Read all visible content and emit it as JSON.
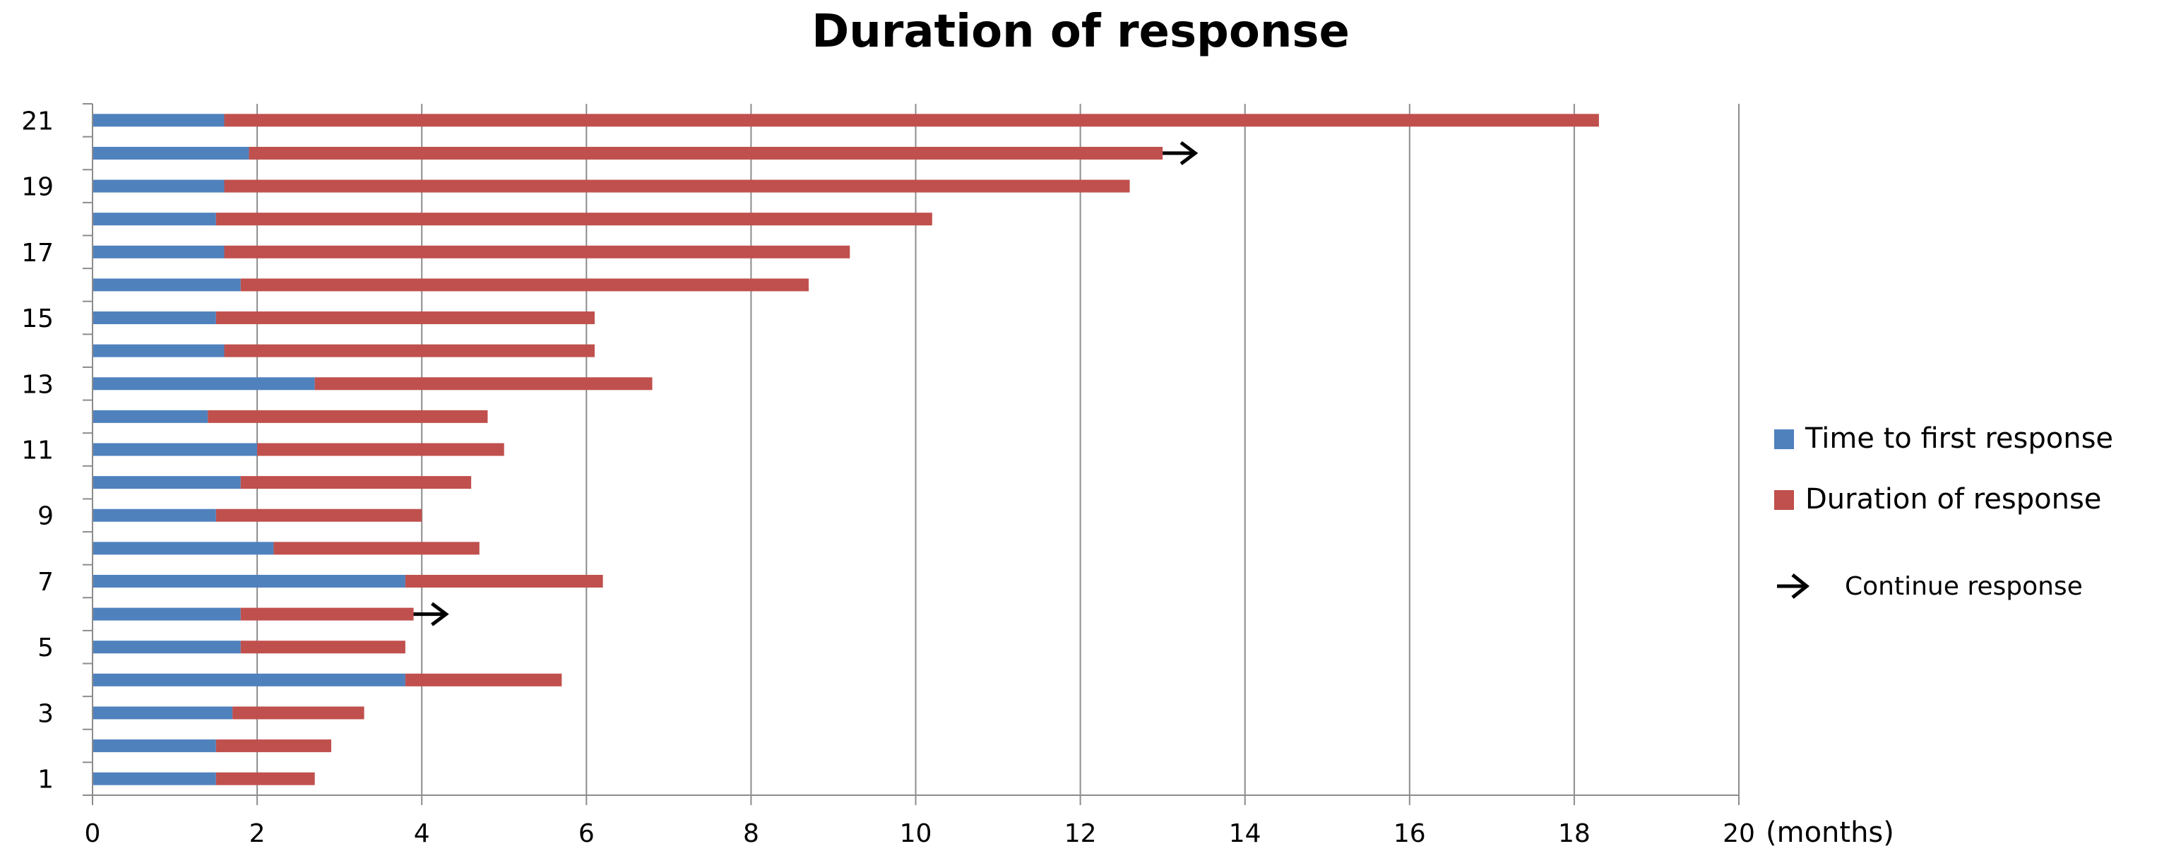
{
  "chart_data": {
    "type": "bar",
    "orientation": "horizontal",
    "stacked": true,
    "title": "Duration of response",
    "x_unit_label": "(months)",
    "xlim": [
      0,
      20
    ],
    "x_ticks": [
      "0",
      "2",
      "4",
      "6",
      "8",
      "10",
      "12",
      "14",
      "16",
      "18",
      "20"
    ],
    "y_tick_labels": [
      "1",
      "3",
      "5",
      "7",
      "9",
      "11",
      "13",
      "15",
      "17",
      "19",
      "21"
    ],
    "categories": [
      1,
      2,
      3,
      4,
      5,
      6,
      7,
      8,
      9,
      10,
      11,
      12,
      13,
      14,
      15,
      16,
      17,
      18,
      19,
      20,
      21
    ],
    "grid": "vertical",
    "legend_position": "right",
    "series": [
      {
        "name": "Time to first response",
        "color": "#4f81bd",
        "values": [
          1.5,
          1.5,
          1.7,
          3.8,
          1.8,
          1.8,
          3.8,
          2.2,
          1.5,
          1.8,
          2.0,
          1.4,
          2.7,
          1.6,
          1.5,
          1.8,
          1.6,
          1.5,
          1.6,
          1.9,
          1.6
        ]
      },
      {
        "name": "Duration of response",
        "color": "#c0504d",
        "values": [
          1.2,
          1.4,
          1.6,
          1.9,
          2.0,
          2.1,
          2.4,
          2.5,
          2.5,
          2.8,
          3.0,
          3.4,
          4.1,
          4.5,
          4.6,
          6.9,
          7.6,
          8.7,
          11.0,
          11.1,
          16.7
        ]
      }
    ],
    "continue_response_bars": [
      6,
      20
    ],
    "annotation_legend": "Continue response",
    "annotation_icon": "arrow-right-icon"
  }
}
